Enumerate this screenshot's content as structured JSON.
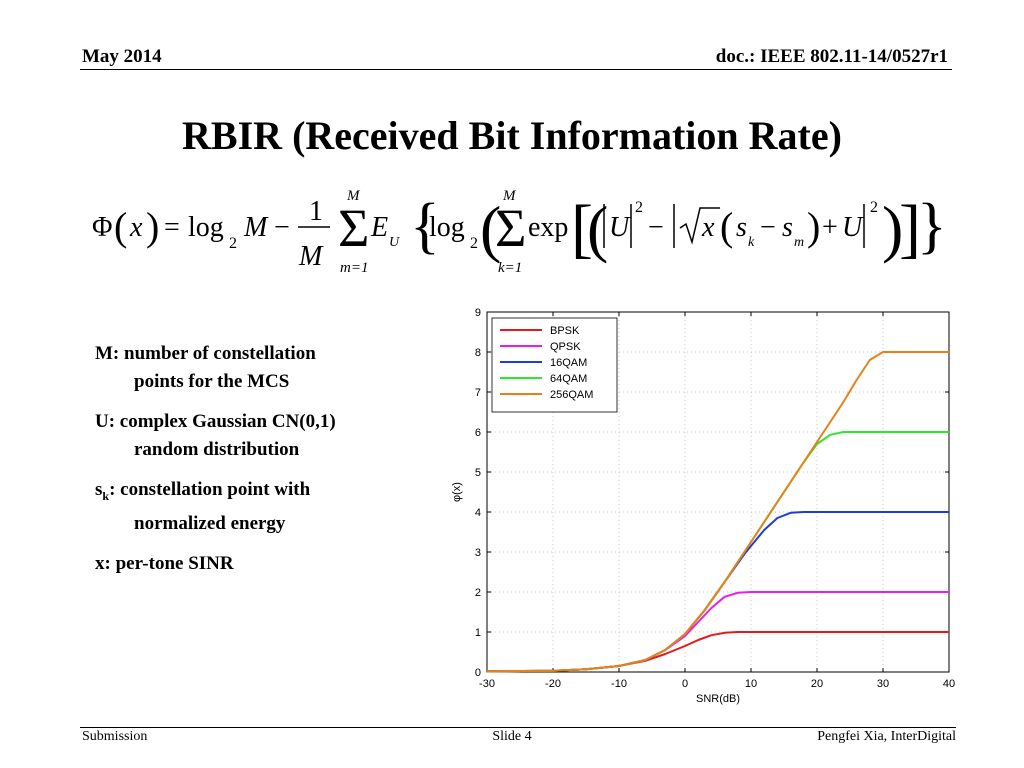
{
  "header": {
    "left": "May 2014",
    "right": "doc.: IEEE 802.11-14/0527r1"
  },
  "title": "RBIR (Received Bit Information Rate)",
  "formula": {
    "phi": "Φ",
    "x": "x",
    "log": "log",
    "base": "2",
    "M": "M",
    "one": "1",
    "sum_lower_m": "m=1",
    "sum_lower_k": "k=1",
    "E": "E",
    "U_sub": "U",
    "exp": "exp",
    "U": "U",
    "sq": "2",
    "s": "s",
    "k": "k",
    "m": "m"
  },
  "bullets": [
    {
      "main": "M: number of constellation",
      "cont": "points  for the MCS"
    },
    {
      "main": "U: complex Gaussian CN(0,1)",
      "cont": "random distribution"
    },
    {
      "main_pre": "s",
      "main_sub": "k",
      "main_post": ": constellation point with",
      "cont": "normalized energy"
    },
    {
      "main": "x: per-tone SINR",
      "cont": ""
    }
  ],
  "chart_data": {
    "type": "line",
    "xlabel": "SNR(dB)",
    "ylabel": "φ(x)",
    "xlim": [
      -30,
      40
    ],
    "ylim": [
      0,
      9
    ],
    "xticks": [
      -30,
      -20,
      -10,
      0,
      10,
      20,
      30,
      40
    ],
    "yticks": [
      0,
      1,
      2,
      3,
      4,
      5,
      6,
      7,
      8,
      9
    ],
    "grid": "dotted",
    "legend_position": "top-left",
    "series": [
      {
        "name": "BPSK",
        "color": "#e31a1c",
        "x": [
          -30,
          -20,
          -15,
          -10,
          -6,
          -3,
          0,
          2,
          4,
          6,
          8,
          10,
          40
        ],
        "y": [
          0.02,
          0.03,
          0.07,
          0.15,
          0.28,
          0.45,
          0.65,
          0.8,
          0.92,
          0.98,
          1.0,
          1.0,
          1.0
        ]
      },
      {
        "name": "QPSK",
        "color": "#e81ee8",
        "x": [
          -30,
          -20,
          -15,
          -10,
          -6,
          -3,
          0,
          2,
          4,
          6,
          8,
          10,
          40
        ],
        "y": [
          0.02,
          0.03,
          0.07,
          0.15,
          0.3,
          0.55,
          0.9,
          1.25,
          1.6,
          1.88,
          1.98,
          2.0,
          2.0
        ]
      },
      {
        "name": "16QAM",
        "color": "#1f3bdb",
        "x": [
          -30,
          -20,
          -15,
          -10,
          -6,
          -3,
          0,
          3,
          6,
          9,
          12,
          14,
          16,
          18,
          40
        ],
        "y": [
          0.02,
          0.03,
          0.07,
          0.15,
          0.3,
          0.55,
          0.95,
          1.55,
          2.25,
          2.95,
          3.55,
          3.85,
          3.98,
          4.0,
          4.0
        ]
      },
      {
        "name": "64QAM",
        "color": "#2ee82e",
        "x": [
          -30,
          -20,
          -15,
          -10,
          -6,
          -3,
          0,
          3,
          6,
          9,
          12,
          15,
          18,
          20,
          22,
          24,
          40
        ],
        "y": [
          0.02,
          0.03,
          0.07,
          0.15,
          0.3,
          0.55,
          0.95,
          1.55,
          2.25,
          3.0,
          3.75,
          4.5,
          5.25,
          5.7,
          5.93,
          6.0,
          6.0
        ]
      },
      {
        "name": "256QAM",
        "color": "#e8801a",
        "x": [
          -30,
          -20,
          -15,
          -10,
          -6,
          -3,
          0,
          3,
          6,
          9,
          12,
          15,
          18,
          21,
          24,
          26,
          28,
          30,
          40
        ],
        "y": [
          0.02,
          0.03,
          0.07,
          0.15,
          0.3,
          0.55,
          0.95,
          1.55,
          2.25,
          3.0,
          3.75,
          4.5,
          5.25,
          6.0,
          6.75,
          7.3,
          7.8,
          8.0,
          8.0
        ]
      }
    ]
  },
  "footer": {
    "left": "Submission",
    "center": "Slide 4",
    "right": "Pengfei Xia, InterDigital"
  }
}
